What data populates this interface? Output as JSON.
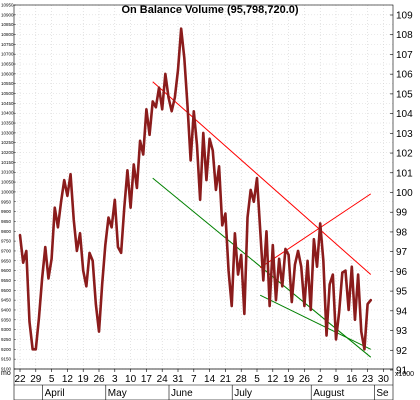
{
  "chart_data": {
    "type": "line",
    "title": "On Balance Volume (95,798,720.0)",
    "y_unit_label": "x1000",
    "corner_label": "mo",
    "ylim": [
      9100,
      10950
    ],
    "x_tick_labels": [
      "22",
      "29",
      "5",
      "12",
      "19",
      "26",
      "3",
      "10",
      "17",
      "24",
      "31",
      "7",
      "14",
      "21",
      "28",
      "5",
      "12",
      "19",
      "26",
      "2",
      "9",
      "16",
      "23",
      "30"
    ],
    "month_labels": [
      {
        "label": "April",
        "tick": 2
      },
      {
        "label": "May",
        "tick": 6
      },
      {
        "label": "June",
        "tick": 10
      },
      {
        "label": "July",
        "tick": 14
      },
      {
        "label": "August",
        "tick": 19
      },
      {
        "label": "Se",
        "tick": 23
      }
    ],
    "left_ticks": [
      9100,
      9150,
      9200,
      9250,
      9300,
      9350,
      9400,
      9450,
      9500,
      9550,
      9600,
      9650,
      9700,
      9750,
      9800,
      9850,
      9900,
      9950,
      10000,
      10050,
      10100,
      10150,
      10200,
      10250,
      10300,
      10350,
      10400,
      10450,
      10500,
      10550,
      10600,
      10650,
      10700,
      10750,
      10800,
      10850,
      10900,
      10950
    ],
    "right_ticks": [
      91,
      92,
      93,
      94,
      95,
      96,
      97,
      98,
      99,
      100,
      101,
      102,
      103,
      104,
      105,
      106,
      107,
      108,
      109
    ],
    "colors": {
      "series": "#8b1c1c",
      "resistance": "#ff0000",
      "support": "#008000",
      "grid": "#c8c8c8"
    },
    "series": [
      {
        "x": [
          0,
          0.2,
          0.4,
          0.6,
          0.8,
          1.0,
          1.2,
          1.4,
          1.6,
          1.8,
          2.0,
          2.2,
          2.4,
          2.6,
          2.8,
          3.0,
          3.2,
          3.4,
          3.6,
          3.8,
          4.0,
          4.2,
          4.4,
          4.6,
          4.8,
          5.0,
          5.2,
          5.4,
          5.6,
          5.8,
          6.0,
          6.2,
          6.4,
          6.6,
          6.8,
          7.0,
          7.2,
          7.4,
          7.6,
          7.8,
          8.0,
          8.2,
          8.4,
          8.6,
          8.8,
          9.0,
          9.2,
          9.4,
          9.6,
          9.8,
          10.0,
          10.2,
          10.4,
          10.6,
          10.8,
          11.0,
          11.2,
          11.4,
          11.6,
          11.8,
          12.0,
          12.2,
          12.4,
          12.6,
          12.8,
          13.0,
          13.2,
          13.4,
          13.6,
          13.8,
          14.0,
          14.2,
          14.4,
          14.6,
          14.8,
          15.0,
          15.2,
          15.4,
          15.6,
          15.8,
          16.0,
          16.2,
          16.4,
          16.6,
          16.8,
          17.0,
          17.2,
          17.4,
          17.6,
          17.8,
          18.0,
          18.2,
          18.4,
          18.6,
          18.8,
          19.0,
          19.2,
          19.4,
          19.6,
          19.8,
          20.0,
          20.2,
          20.4,
          20.6,
          20.8,
          21.0,
          21.2,
          21.4,
          21.6,
          21.8,
          22.0,
          22.2
        ],
        "values": [
          9780,
          9640,
          9700,
          9340,
          9200,
          9200,
          9360,
          9560,
          9720,
          9560,
          9660,
          9920,
          9820,
          9950,
          10060,
          9980,
          10090,
          9860,
          9700,
          9790,
          9600,
          9520,
          9690,
          9650,
          9430,
          9290,
          9530,
          9730,
          9870,
          9820,
          9960,
          9720,
          9690,
          9920,
          10110,
          9920,
          10140,
          10020,
          10260,
          10190,
          10420,
          10290,
          10460,
          10430,
          10530,
          10420,
          10600,
          10480,
          10410,
          10480,
          10620,
          10830,
          10680,
          10440,
          10160,
          10410,
          10240,
          9960,
          10300,
          10060,
          10270,
          10210,
          10010,
          10130,
          9830,
          9890,
          9600,
          9420,
          9790,
          9580,
          9680,
          9380,
          9870,
          10010,
          9950,
          10070,
          9810,
          9550,
          9800,
          9420,
          9730,
          9450,
          9660,
          9520,
          9710,
          9680,
          9440,
          9630,
          9700,
          9620,
          9420,
          9650,
          9400,
          9760,
          9620,
          9840,
          9650,
          9270,
          9530,
          9580,
          9250,
          9390,
          9590,
          9600,
          9400,
          9620,
          9350,
          9580,
          9290,
          9200,
          9430,
          9450
        ]
      }
    ],
    "trendlines": [
      {
        "name": "resistance",
        "color": "#ff0000",
        "x": [
          8.4,
          22.2
        ],
        "y": [
          10560,
          9580
        ]
      },
      {
        "name": "support",
        "color": "#008000",
        "x": [
          8.4,
          22.2
        ],
        "y": [
          10070,
          9160
        ]
      },
      {
        "name": "rising-resistance",
        "color": "#ff0000",
        "x": [
          15.2,
          22.2
        ],
        "y": [
          9615,
          9990
        ]
      },
      {
        "name": "rising-support",
        "color": "#008000",
        "x": [
          15.2,
          22.2
        ],
        "y": [
          9475,
          9200
        ]
      }
    ]
  }
}
